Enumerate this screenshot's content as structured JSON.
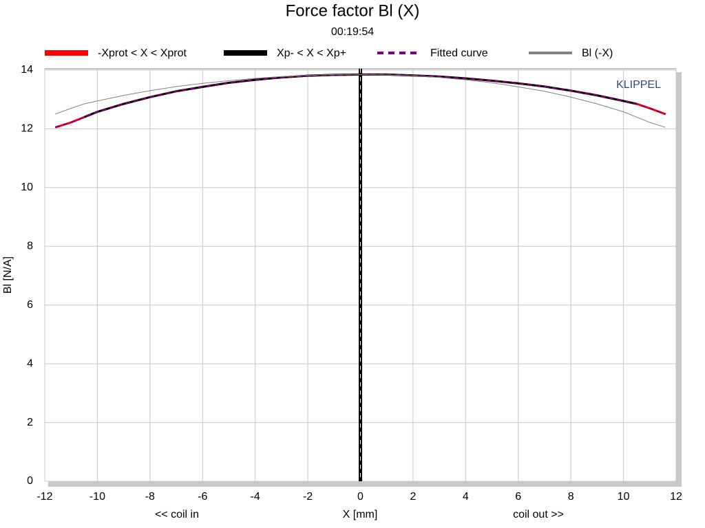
{
  "chart_data": {
    "type": "line",
    "title": "Force factor Bl (X)",
    "subtitle": "00:19:54",
    "x_label": "X [mm]",
    "y_label": "Bl [N/A]",
    "annotations": [
      "<< coil in",
      "coil out >>",
      "KLIPPEL"
    ],
    "x": [
      -11.6,
      -11,
      -10.5,
      -10,
      -9,
      -8,
      -7,
      -6,
      -5,
      -4,
      -3,
      -2,
      -1,
      0,
      1,
      2,
      3,
      4,
      5,
      6,
      7,
      8,
      9,
      10,
      10.5,
      11,
      11.6
    ],
    "series": [
      {
        "name": "-Xprot < X < Xprot",
        "color": "#ff0000",
        "values": [
          12.05,
          12.22,
          12.4,
          12.58,
          12.85,
          13.08,
          13.28,
          13.43,
          13.57,
          13.67,
          13.75,
          13.81,
          13.84,
          13.85,
          13.85,
          13.82,
          13.78,
          13.72,
          13.64,
          13.55,
          13.44,
          13.3,
          13.14,
          12.95,
          12.85,
          12.7,
          12.5
        ]
      },
      {
        "name": "Xp- < X < Xp+",
        "color": "#000000",
        "values": [
          null,
          null,
          12.4,
          12.58,
          12.85,
          13.08,
          13.28,
          13.43,
          13.57,
          13.67,
          13.75,
          13.81,
          13.84,
          13.85,
          13.85,
          13.82,
          13.78,
          13.72,
          13.64,
          13.55,
          13.44,
          13.3,
          13.14,
          12.95,
          12.85,
          null,
          null
        ]
      },
      {
        "name": "Fitted curve",
        "color": "#800080",
        "values": [
          12.05,
          12.22,
          12.4,
          12.58,
          12.85,
          13.08,
          13.28,
          13.43,
          13.57,
          13.67,
          13.75,
          13.81,
          13.84,
          13.85,
          13.85,
          13.82,
          13.78,
          13.72,
          13.64,
          13.55,
          13.44,
          13.3,
          13.14,
          12.95,
          12.85,
          12.7,
          12.5
        ]
      },
      {
        "name": "Bl (-X)",
        "color": "#808080",
        "values": [
          12.5,
          12.7,
          12.85,
          12.95,
          13.14,
          13.3,
          13.44,
          13.55,
          13.64,
          13.72,
          13.78,
          13.82,
          13.85,
          13.85,
          13.84,
          13.81,
          13.75,
          13.67,
          13.57,
          13.43,
          13.28,
          13.08,
          12.85,
          12.58,
          12.4,
          12.22,
          12.05
        ]
      }
    ],
    "xlim": [
      -12,
      12
    ],
    "ylim": [
      0,
      14
    ],
    "xticks": [
      -12,
      -10,
      -8,
      -6,
      -4,
      -2,
      0,
      2,
      4,
      6,
      8,
      10,
      12
    ],
    "yticks": [
      0,
      2,
      4,
      6,
      8,
      10,
      12,
      14
    ],
    "grid": true
  }
}
